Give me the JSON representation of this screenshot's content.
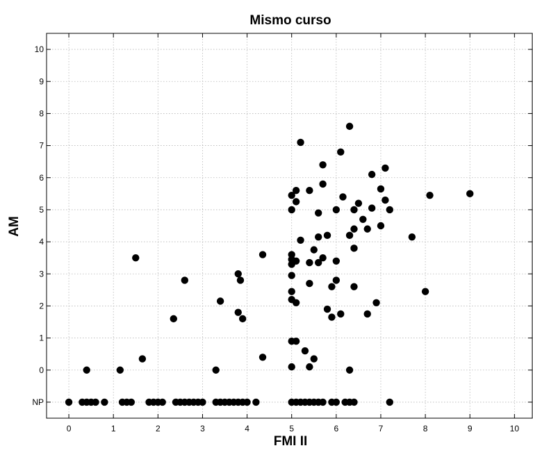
{
  "chart_data": {
    "type": "scatter",
    "title": "Mismo curso",
    "xlabel": "FMI II",
    "ylabel": "AM",
    "xlim": [
      -0.5,
      10.4
    ],
    "ylim": [
      -1.5,
      10.5
    ],
    "x_ticks": [
      0,
      1,
      2,
      3,
      4,
      5,
      6,
      7,
      8,
      9,
      10
    ],
    "y_ticks": [
      {
        "value": -1,
        "label": "NP"
      },
      {
        "value": 0,
        "label": "0"
      },
      {
        "value": 1,
        "label": "1"
      },
      {
        "value": 2,
        "label": "2"
      },
      {
        "value": 3,
        "label": "3"
      },
      {
        "value": 4,
        "label": "4"
      },
      {
        "value": 5,
        "label": "5"
      },
      {
        "value": 6,
        "label": "6"
      },
      {
        "value": 7,
        "label": "7"
      },
      {
        "value": 8,
        "label": "8"
      },
      {
        "value": 9,
        "label": "9"
      },
      {
        "value": 10,
        "label": "10"
      }
    ],
    "grid": true,
    "marker_color": "#000000",
    "points": [
      [
        0,
        -1
      ],
      [
        0.3,
        -1
      ],
      [
        0.4,
        -1
      ],
      [
        0.5,
        -1
      ],
      [
        0.6,
        -1
      ],
      [
        0.8,
        -1
      ],
      [
        1.2,
        -1
      ],
      [
        1.3,
        -1
      ],
      [
        1.4,
        -1
      ],
      [
        1.8,
        -1
      ],
      [
        1.9,
        -1
      ],
      [
        2.0,
        -1
      ],
      [
        2.1,
        -1
      ],
      [
        2.4,
        -1
      ],
      [
        2.5,
        -1
      ],
      [
        2.6,
        -1
      ],
      [
        2.7,
        -1
      ],
      [
        2.8,
        -1
      ],
      [
        2.9,
        -1
      ],
      [
        3.0,
        -1
      ],
      [
        3.3,
        -1
      ],
      [
        3.4,
        -1
      ],
      [
        3.5,
        -1
      ],
      [
        3.6,
        -1
      ],
      [
        3.7,
        -1
      ],
      [
        3.8,
        -1
      ],
      [
        3.9,
        -1
      ],
      [
        4.0,
        -1
      ],
      [
        4.2,
        -1
      ],
      [
        5.0,
        -1
      ],
      [
        5.1,
        -1
      ],
      [
        5.2,
        -1
      ],
      [
        5.3,
        -1
      ],
      [
        5.4,
        -1
      ],
      [
        5.5,
        -1
      ],
      [
        5.6,
        -1
      ],
      [
        5.7,
        -1
      ],
      [
        5.9,
        -1
      ],
      [
        6.0,
        -1
      ],
      [
        6.2,
        -1
      ],
      [
        6.3,
        -1
      ],
      [
        6.4,
        -1
      ],
      [
        7.2,
        -1
      ],
      [
        0.4,
        0
      ],
      [
        1.15,
        0
      ],
      [
        3.3,
        0
      ],
      [
        6.3,
        0
      ],
      [
        1.65,
        0.35
      ],
      [
        4.35,
        0.4
      ],
      [
        5.0,
        0.1
      ],
      [
        5.4,
        0.1
      ],
      [
        5.5,
        0.35
      ],
      [
        5.3,
        0.6
      ],
      [
        5.0,
        0.9
      ],
      [
        5.1,
        0.9
      ],
      [
        2.35,
        1.6
      ],
      [
        3.9,
        1.6
      ],
      [
        3.8,
        1.8
      ],
      [
        3.4,
        2.15
      ],
      [
        5.0,
        2.2
      ],
      [
        5.1,
        2.1
      ],
      [
        5.8,
        1.9
      ],
      [
        5.9,
        1.65
      ],
      [
        6.1,
        1.75
      ],
      [
        6.7,
        1.75
      ],
      [
        6.9,
        2.1
      ],
      [
        5.0,
        2.45
      ],
      [
        5.9,
        2.6
      ],
      [
        6.4,
        2.6
      ],
      [
        8.0,
        2.45
      ],
      [
        2.6,
        2.8
      ],
      [
        3.8,
        3.0
      ],
      [
        3.85,
        2.8
      ],
      [
        5.0,
        2.95
      ],
      [
        5.4,
        2.7
      ],
      [
        6.0,
        2.8
      ],
      [
        1.5,
        3.5
      ],
      [
        4.35,
        3.6
      ],
      [
        5.0,
        3.3
      ],
      [
        5.0,
        3.45
      ],
      [
        5.0,
        3.6
      ],
      [
        5.1,
        3.4
      ],
      [
        5.4,
        3.35
      ],
      [
        5.5,
        3.75
      ],
      [
        5.6,
        3.35
      ],
      [
        5.7,
        3.5
      ],
      [
        6.0,
        3.4
      ],
      [
        5.2,
        4.05
      ],
      [
        5.6,
        4.15
      ],
      [
        5.8,
        4.2
      ],
      [
        6.3,
        4.2
      ],
      [
        6.4,
        3.8
      ],
      [
        6.4,
        4.4
      ],
      [
        6.7,
        4.4
      ],
      [
        7.7,
        4.15
      ],
      [
        5.0,
        5.0
      ],
      [
        5.1,
        5.25
      ],
      [
        5.6,
        4.9
      ],
      [
        6.0,
        5.0
      ],
      [
        6.4,
        5.0
      ],
      [
        6.6,
        4.7
      ],
      [
        6.8,
        5.05
      ],
      [
        7.0,
        4.5
      ],
      [
        7.2,
        5.0
      ],
      [
        5.0,
        5.45
      ],
      [
        5.1,
        5.6
      ],
      [
        5.4,
        5.6
      ],
      [
        6.15,
        5.4
      ],
      [
        6.5,
        5.2
      ],
      [
        7.0,
        5.65
      ],
      [
        7.1,
        5.3
      ],
      [
        8.1,
        5.45
      ],
      [
        9.0,
        5.5
      ],
      [
        5.7,
        5.8
      ],
      [
        5.7,
        6.4
      ],
      [
        6.8,
        6.1
      ],
      [
        7.1,
        6.3
      ],
      [
        6.1,
        6.8
      ],
      [
        5.2,
        7.1
      ],
      [
        6.3,
        7.6
      ]
    ]
  }
}
